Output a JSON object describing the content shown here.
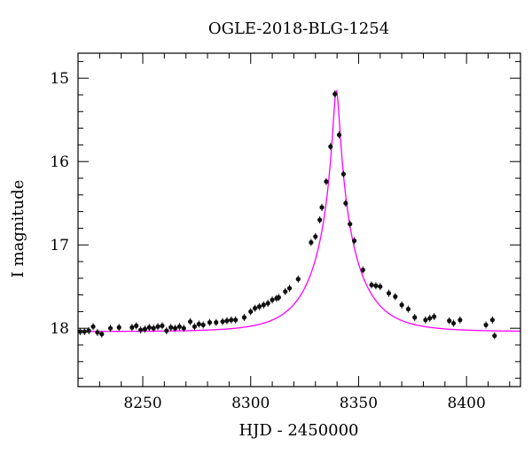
{
  "chart_data": {
    "type": "scatter",
    "title": "OGLE-2018-BLG-1254",
    "xlabel": "HJD - 2450000",
    "ylabel": "I magnitude",
    "xlim": [
      8220,
      8425
    ],
    "ylim": [
      18.7,
      14.7
    ],
    "y_inverted": true,
    "grid": false,
    "colors": {
      "points": "#111111",
      "model": "#ff00ff",
      "frame": "#000000"
    },
    "x_ticks": [
      8250,
      8300,
      8350,
      8400
    ],
    "x_tick_labels": [
      "8250",
      "8300",
      "8350",
      "8400"
    ],
    "y_ticks": [
      15,
      16,
      17,
      18
    ],
    "y_tick_labels": [
      "15",
      "16",
      "17",
      "18"
    ],
    "model": {
      "description_of_curve": "single-lens magnification fit",
      "t0": 8339.7,
      "u0": 0.07,
      "tE": 20.0,
      "baseline_mag": 18.04
    },
    "series": [
      {
        "x": [
          8221,
          8223,
          8225,
          8227,
          8229,
          8231,
          8235,
          8239,
          8245,
          8247,
          8249,
          8251,
          8253,
          8255,
          8257,
          8259,
          8261,
          8263,
          8265,
          8267,
          8269,
          8272,
          8274,
          8276,
          8278,
          8281,
          8284,
          8287,
          8289,
          8291,
          8293,
          8297,
          8300,
          8302,
          8304,
          8306,
          8308,
          8310,
          8312,
          8313,
          8316,
          8318,
          8322,
          8328,
          8330,
          8332,
          8333,
          8335,
          8337,
          8339,
          8341,
          8343,
          8344,
          8346,
          8348,
          8352,
          8356,
          8358,
          8360,
          8364,
          8367,
          8370,
          8373,
          8376,
          8381,
          8383,
          8385,
          8392,
          8394,
          8397,
          8409,
          8412,
          8413
        ],
        "y": [
          18.04,
          18.04,
          18.03,
          17.98,
          18.05,
          18.07,
          18.0,
          17.99,
          17.99,
          17.97,
          18.02,
          18.01,
          17.99,
          18.0,
          17.98,
          17.97,
          18.03,
          17.99,
          18.0,
          17.98,
          18.0,
          17.92,
          17.98,
          17.95,
          17.96,
          17.93,
          17.93,
          17.92,
          17.91,
          17.9,
          17.9,
          17.87,
          17.8,
          17.76,
          17.74,
          17.72,
          17.7,
          17.66,
          17.64,
          17.63,
          17.56,
          17.52,
          17.41,
          16.97,
          16.9,
          16.7,
          16.55,
          16.24,
          15.82,
          15.19,
          15.68,
          16.15,
          16.5,
          16.75,
          16.95,
          17.3,
          17.48,
          17.49,
          17.5,
          17.58,
          17.62,
          17.72,
          17.77,
          17.87,
          17.9,
          17.88,
          17.86,
          17.91,
          17.94,
          17.9,
          17.96,
          17.9,
          18.09
        ]
      }
    ]
  }
}
